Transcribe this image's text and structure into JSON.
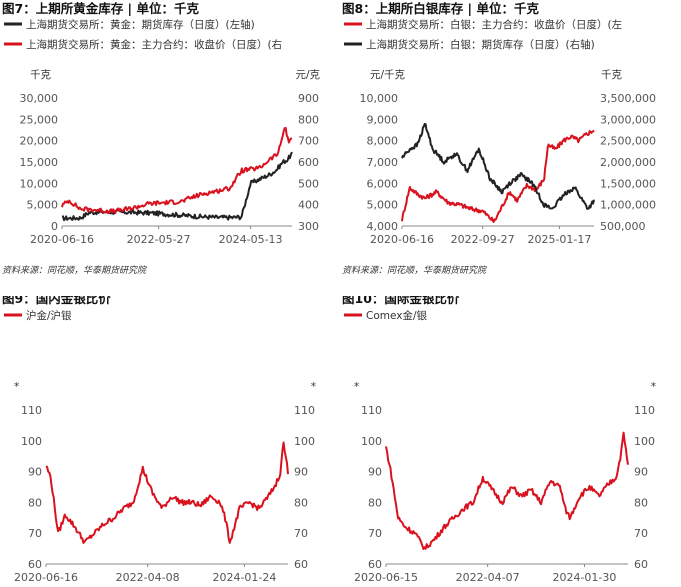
{
  "colors": {
    "red": "#d9121f",
    "black": "#222222",
    "axis": "#888888"
  },
  "charts": [
    {
      "id": "p7",
      "title": "图7：上期所黄金库存 | 单位：千克",
      "legend": [
        "上海期货交易所：黄金：期货库存（日度）(左轴)",
        "上海期货交易所：黄金：主力合约：收盘价（日度）(右"
      ],
      "unit_left": "千克",
      "unit_right": "元/克",
      "source": "资料来源：同花顺，华泰期货研究院",
      "left_ticks": [
        "30,000",
        "25,000",
        "20,000",
        "15,000",
        "10,000",
        "5,000",
        "0"
      ],
      "right_ticks": [
        "900",
        "800",
        "700",
        "600",
        "500",
        "400",
        "300"
      ],
      "x_ticks": [
        "2020-06-16",
        "2022-05-27",
        "2024-05-13"
      ]
    },
    {
      "id": "p8",
      "title": "图8：上期所白银库存 | 单位：千克",
      "legend": [
        "上海期货交易所：白银：主力合约：收盘价（日度）(左",
        "上海期货交易所：白银：期货库存（日度）(右轴)"
      ],
      "unit_left": "元/千克",
      "unit_right": "千克",
      "source": "资料来源：同花顺，华泰期货研究院",
      "left_ticks": [
        "10,000",
        "9,000",
        "8,000",
        "7,000",
        "6,000",
        "5,000",
        "4,000"
      ],
      "right_ticks": [
        "3,500,000",
        "3,000,000",
        "2,500,000",
        "2,000,000",
        "1,500,000",
        "1,000,000",
        "500,000"
      ],
      "x_ticks": [
        "2020-06-16",
        "2022-09-27",
        "2025-01-17"
      ]
    },
    {
      "id": "p9",
      "title": "图9：国内金银比价",
      "legend": [
        "沪金/沪银"
      ],
      "unit_left": "*",
      "unit_right": "*",
      "source": "",
      "left_ticks": [
        "110",
        "100",
        "90",
        "80",
        "70",
        "60"
      ],
      "right_ticks": [
        "110",
        "100",
        "90",
        "80",
        "70",
        "60"
      ],
      "x_ticks": [
        "2020-06-16",
        "2022-04-08",
        "2024-01-24"
      ]
    },
    {
      "id": "p10",
      "title": "图10：国际金银比价",
      "legend": [
        "Comex金/银"
      ],
      "unit_left": "*",
      "unit_right": "*",
      "source": "",
      "left_ticks": [
        "110",
        "100",
        "90",
        "80",
        "70",
        "60"
      ],
      "right_ticks": [
        "110",
        "100",
        "90",
        "80",
        "70",
        "60"
      ],
      "x_ticks": [
        "2020-06-15",
        "2022-04-07",
        "2024-01-30"
      ]
    }
  ],
  "chart_data": [
    {
      "type": "line",
      "title": "图7：上期所黄金库存 | 单位：千克",
      "x_range": [
        "2020-06-16",
        "2025-03"
      ],
      "ylim_left": [
        0,
        30000
      ],
      "ylim_right": [
        300,
        900
      ],
      "series": [
        {
          "name": "上海期货交易所：黄金：期货库存（日度）(左轴)",
          "axis": "left",
          "color": "#222222",
          "t": [
            0,
            0.08,
            0.12,
            0.2,
            0.3,
            0.4,
            0.5,
            0.6,
            0.68,
            0.74,
            0.78,
            0.8,
            0.82,
            0.86,
            0.9,
            0.93,
            0.96,
            0.98,
            1.0
          ],
          "y": [
            1800,
            1900,
            3200,
            3300,
            3200,
            3000,
            2600,
            2200,
            2000,
            2000,
            2100,
            6000,
            10000,
            11000,
            12000,
            13000,
            15000,
            15500,
            17000
          ]
        },
        {
          "name": "上海期货交易所：黄金：主力合约：收盘价（日度）(右",
          "axis": "right",
          "color": "#d9121f",
          "t": [
            0,
            0.03,
            0.08,
            0.15,
            0.22,
            0.3,
            0.38,
            0.45,
            0.52,
            0.58,
            0.63,
            0.68,
            0.73,
            0.78,
            0.82,
            0.86,
            0.9,
            0.94,
            0.97,
            0.985,
            1.0
          ],
          "y": [
            395,
            420,
            380,
            375,
            368,
            382,
            405,
            410,
            415,
            440,
            455,
            465,
            478,
            560,
            565,
            572,
            610,
            640,
            770,
            690,
            720
          ]
        }
      ]
    },
    {
      "type": "line",
      "title": "图8：上期所白银库存 | 单位：千克",
      "x_range": [
        "2020-06-16",
        "2025-03"
      ],
      "ylim_left": [
        4000,
        10000
      ],
      "ylim_right": [
        500000,
        3500000
      ],
      "series": [
        {
          "name": "上海期货交易所：白银：主力合约：收盘价（日度）(左",
          "axis": "left",
          "color": "#d9121f",
          "t": [
            0,
            0.04,
            0.08,
            0.12,
            0.18,
            0.24,
            0.3,
            0.36,
            0.42,
            0.48,
            0.52,
            0.56,
            0.6,
            0.65,
            0.7,
            0.74,
            0.76,
            0.8,
            0.84,
            0.88,
            0.92,
            0.96,
            1.0
          ],
          "y": [
            4300,
            5800,
            5500,
            5300,
            5600,
            5100,
            5000,
            4800,
            4700,
            4200,
            4900,
            5600,
            5200,
            5900,
            5700,
            6200,
            7800,
            7600,
            8000,
            8200,
            8000,
            8300,
            8500
          ]
        },
        {
          "name": "上海期货交易所：白银：期货库存（日度）(右轴)",
          "axis": "right",
          "color": "#222222",
          "t": [
            0,
            0.04,
            0.08,
            0.12,
            0.16,
            0.22,
            0.28,
            0.34,
            0.4,
            0.46,
            0.52,
            0.56,
            0.62,
            0.68,
            0.74,
            0.78,
            0.82,
            0.86,
            0.9,
            0.94,
            0.97,
            1.0
          ],
          "y": [
            2100000,
            2300000,
            2400000,
            2900000,
            2300000,
            2000000,
            2200000,
            1800000,
            2300000,
            1600000,
            1300000,
            1500000,
            1700000,
            1500000,
            1000000,
            900000,
            1100000,
            1300000,
            1400000,
            1100000,
            900000,
            1100000
          ]
        }
      ]
    },
    {
      "type": "line",
      "title": "图9：国内金银比价",
      "x_range": [
        "2020-06-16",
        "2025-03"
      ],
      "ylim_left": [
        60,
        110
      ],
      "ylim_right": [
        60,
        110
      ],
      "series": [
        {
          "name": "沪金/沪银",
          "axis": "left",
          "color": "#d9121f",
          "t": [
            0,
            0.02,
            0.05,
            0.08,
            0.12,
            0.16,
            0.2,
            0.24,
            0.28,
            0.32,
            0.36,
            0.4,
            0.44,
            0.48,
            0.52,
            0.56,
            0.6,
            0.64,
            0.68,
            0.72,
            0.74,
            0.76,
            0.8,
            0.84,
            0.88,
            0.92,
            0.95,
            0.97,
            0.98,
            1.0
          ],
          "y": [
            92,
            88,
            70,
            76,
            72,
            67,
            70,
            73,
            75,
            78,
            80,
            91,
            83,
            78,
            82,
            80,
            80,
            79,
            82,
            80,
            75,
            67,
            78,
            80,
            78,
            82,
            86,
            90,
            100,
            90
          ]
        }
      ]
    },
    {
      "type": "line",
      "title": "图10：国际金银比价",
      "x_range": [
        "2020-06-15",
        "2025-03"
      ],
      "ylim_left": [
        60,
        110
      ],
      "ylim_right": [
        60,
        110
      ],
      "series": [
        {
          "name": "Comex金/银",
          "axis": "left",
          "color": "#d9121f",
          "t": [
            0,
            0.02,
            0.05,
            0.08,
            0.12,
            0.16,
            0.2,
            0.24,
            0.28,
            0.32,
            0.36,
            0.4,
            0.44,
            0.48,
            0.52,
            0.56,
            0.6,
            0.64,
            0.68,
            0.72,
            0.74,
            0.76,
            0.8,
            0.84,
            0.88,
            0.92,
            0.95,
            0.97,
            0.98,
            1.0
          ],
          "y": [
            98,
            90,
            75,
            72,
            70,
            65,
            68,
            72,
            75,
            78,
            80,
            88,
            84,
            80,
            85,
            82,
            84,
            80,
            87,
            85,
            78,
            75,
            82,
            85,
            82,
            86,
            88,
            95,
            103,
            92
          ]
        }
      ]
    }
  ]
}
